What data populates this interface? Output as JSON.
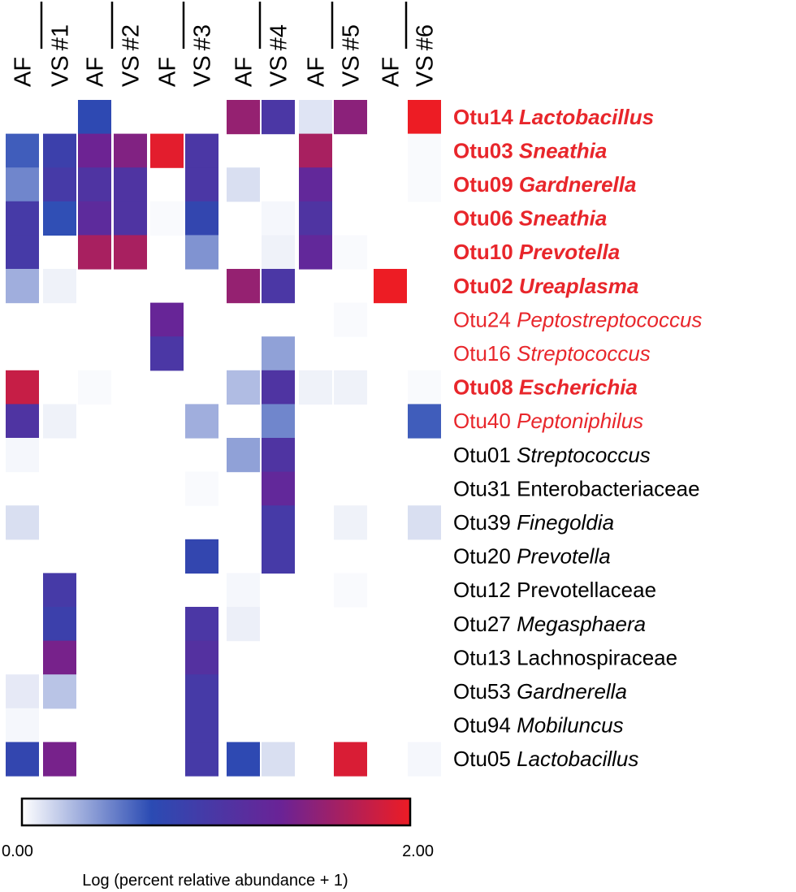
{
  "chart_data": {
    "type": "heatmap",
    "title": "",
    "subjects": [
      "#1",
      "#2",
      "#3",
      "#4",
      "#5",
      "#6"
    ],
    "sample_types": [
      "AF",
      "VS"
    ],
    "columns": [
      {
        "subject": "#1",
        "sample": "AF"
      },
      {
        "subject": "#1",
        "sample": "VS"
      },
      {
        "subject": "#2",
        "sample": "AF"
      },
      {
        "subject": "#2",
        "sample": "VS"
      },
      {
        "subject": "#3",
        "sample": "AF"
      },
      {
        "subject": "#3",
        "sample": "VS"
      },
      {
        "subject": "#4",
        "sample": "AF"
      },
      {
        "subject": "#4",
        "sample": "VS"
      },
      {
        "subject": "#5",
        "sample": "AF"
      },
      {
        "subject": "#5",
        "sample": "VS"
      },
      {
        "subject": "#6",
        "sample": "AF"
      },
      {
        "subject": "#6",
        "sample": "VS"
      }
    ],
    "rows": [
      {
        "otu": "Otu14",
        "taxon": "Lactobacillus",
        "italic": true,
        "highlight": "bold-red"
      },
      {
        "otu": "Otu03",
        "taxon": "Sneathia",
        "italic": true,
        "highlight": "bold-red"
      },
      {
        "otu": "Otu09",
        "taxon": "Gardnerella",
        "italic": true,
        "highlight": "bold-red"
      },
      {
        "otu": "Otu06",
        "taxon": "Sneathia",
        "italic": true,
        "highlight": "bold-red"
      },
      {
        "otu": "Otu10",
        "taxon": "Prevotella",
        "italic": true,
        "highlight": "bold-red"
      },
      {
        "otu": "Otu02",
        "taxon": "Ureaplasma",
        "italic": true,
        "highlight": "bold-red"
      },
      {
        "otu": "Otu24",
        "taxon": "Peptostreptococcus",
        "italic": true,
        "highlight": "red"
      },
      {
        "otu": "Otu16",
        "taxon": "Streptococcus",
        "italic": true,
        "highlight": "red"
      },
      {
        "otu": "Otu08",
        "taxon": "Escherichia",
        "italic": true,
        "highlight": "bold-red"
      },
      {
        "otu": "Otu40",
        "taxon": "Peptoniphilus",
        "italic": true,
        "highlight": "red"
      },
      {
        "otu": "Otu01",
        "taxon": "Streptococcus",
        "italic": true,
        "highlight": "none"
      },
      {
        "otu": "Otu31",
        "taxon": "Enterobacteriaceae",
        "italic": false,
        "highlight": "none"
      },
      {
        "otu": "Otu39",
        "taxon": "Finegoldia",
        "italic": true,
        "highlight": "none"
      },
      {
        "otu": "Otu20",
        "taxon": "Prevotella",
        "italic": true,
        "highlight": "none"
      },
      {
        "otu": "Otu12",
        "taxon": "Prevotellaceae",
        "italic": false,
        "highlight": "none"
      },
      {
        "otu": "Otu27",
        "taxon": "Megasphaera",
        "italic": true,
        "highlight": "none"
      },
      {
        "otu": "Otu13",
        "taxon": "Lachnospiraceae",
        "italic": false,
        "highlight": "none"
      },
      {
        "otu": "Otu53",
        "taxon": "Gardnerella",
        "italic": true,
        "highlight": "none"
      },
      {
        "otu": "Otu94",
        "taxon": "Mobiluncus",
        "italic": true,
        "highlight": "none"
      },
      {
        "otu": "Otu05",
        "taxon": "Lactobacillus",
        "italic": true,
        "highlight": "none"
      }
    ],
    "values": [
      [
        0.0,
        0.0,
        0.7,
        0.0,
        0.0,
        0.0,
        1.55,
        1.0,
        0.1,
        1.5,
        0.0,
        2.0
      ],
      [
        0.6,
        0.85,
        1.35,
        1.45,
        1.95,
        1.0,
        0.0,
        0.0,
        1.65,
        0.0,
        0.0,
        0.02
      ],
      [
        0.45,
        0.95,
        1.05,
        1.05,
        0.0,
        1.0,
        0.12,
        0.0,
        1.25,
        0.0,
        0.0,
        0.02
      ],
      [
        0.95,
        0.65,
        1.2,
        1.05,
        0.02,
        0.75,
        0.0,
        0.03,
        1.05,
        0.0,
        0.0,
        0.0
      ],
      [
        0.95,
        0.0,
        1.65,
        1.65,
        0.0,
        0.4,
        0.0,
        0.05,
        1.25,
        0.02,
        0.0,
        0.0
      ],
      [
        0.3,
        0.05,
        0.0,
        0.0,
        0.0,
        0.0,
        1.55,
        1.0,
        0.0,
        0.0,
        2.0,
        0.0
      ],
      [
        0.0,
        0.0,
        0.0,
        0.0,
        1.3,
        0.0,
        0.0,
        0.0,
        0.0,
        0.02,
        0.0,
        0.0
      ],
      [
        0.0,
        0.0,
        0.0,
        0.0,
        1.0,
        0.0,
        0.0,
        0.35,
        0.0,
        0.0,
        0.0,
        0.0
      ],
      [
        1.8,
        0.0,
        0.02,
        0.0,
        0.0,
        0.0,
        0.25,
        1.05,
        0.05,
        0.05,
        0.0,
        0.02
      ],
      [
        1.05,
        0.05,
        0.0,
        0.0,
        0.0,
        0.3,
        0.0,
        0.45,
        0.0,
        0.0,
        0.0,
        0.6
      ],
      [
        0.03,
        0.0,
        0.0,
        0.0,
        0.0,
        0.0,
        0.35,
        1.05,
        0.0,
        0.0,
        0.0,
        0.0
      ],
      [
        0.0,
        0.0,
        0.0,
        0.0,
        0.0,
        0.02,
        0.0,
        1.25,
        0.0,
        0.0,
        0.0,
        0.0
      ],
      [
        0.12,
        0.0,
        0.0,
        0.0,
        0.0,
        0.0,
        0.0,
        0.95,
        0.0,
        0.05,
        0.0,
        0.12
      ],
      [
        0.0,
        0.0,
        0.0,
        0.0,
        0.0,
        0.75,
        0.0,
        0.95,
        0.0,
        0.0,
        0.0,
        0.0
      ],
      [
        0.0,
        0.95,
        0.0,
        0.0,
        0.0,
        0.0,
        0.03,
        0.0,
        0.0,
        0.02,
        0.0,
        0.0
      ],
      [
        0.0,
        0.85,
        0.0,
        0.0,
        0.0,
        1.0,
        0.06,
        0.0,
        0.0,
        0.0,
        0.0,
        0.0
      ],
      [
        0.0,
        1.4,
        0.0,
        0.0,
        0.0,
        1.1,
        0.0,
        0.0,
        0.0,
        0.0,
        0.0,
        0.0
      ],
      [
        0.08,
        0.22,
        0.0,
        0.0,
        0.0,
        0.95,
        0.0,
        0.0,
        0.0,
        0.0,
        0.0,
        0.0
      ],
      [
        0.03,
        0.0,
        0.0,
        0.0,
        0.0,
        0.95,
        0.0,
        0.0,
        0.0,
        0.0,
        0.0,
        0.0
      ],
      [
        0.75,
        1.4,
        0.0,
        0.0,
        0.0,
        0.95,
        0.7,
        0.12,
        0.0,
        1.9,
        0.0,
        0.03
      ]
    ],
    "color_scale": {
      "min": 0.0,
      "max": 2.0,
      "min_label": "0.00",
      "max_label": "2.00",
      "stops": [
        "#ffffff",
        "#2b4bb3",
        "#6a2396",
        "#ed1c24"
      ],
      "label": "Log (percent relative abundance + 1)"
    },
    "highlight_color": "#e8262b",
    "text_color": "#000000"
  }
}
